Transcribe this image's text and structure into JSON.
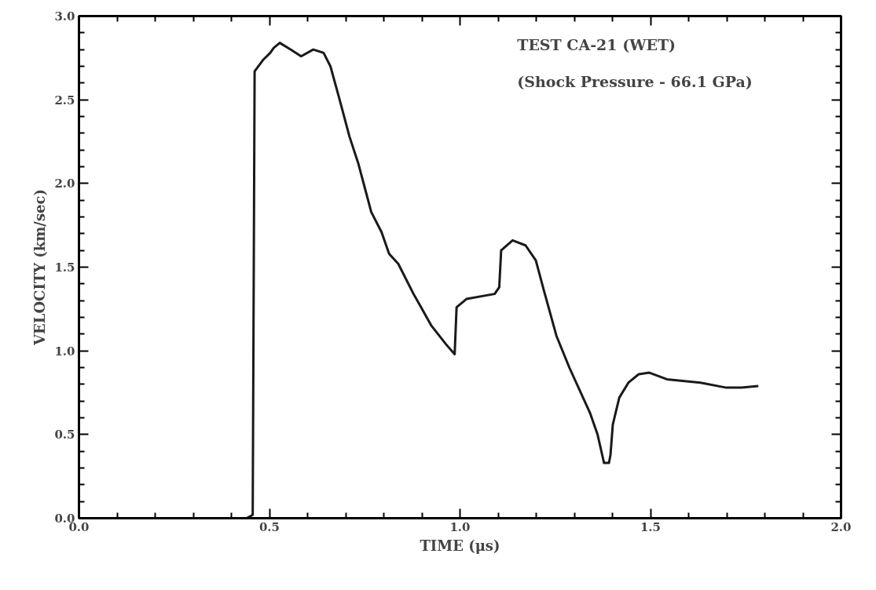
{
  "chart_data": {
    "type": "line",
    "xlabel": "TIME (μs)",
    "ylabel": "VELOCITY (km/sec)",
    "annotations": [
      "TEST CA-21 (WET)",
      "(Shock Pressure - 66.1 GPa)"
    ],
    "xlim": [
      0,
      2
    ],
    "ylim": [
      0,
      3
    ],
    "xticks": [
      {
        "value": 0,
        "label": "0.0"
      },
      0.5,
      {
        "value": 1,
        "label": "1.0"
      },
      1.5,
      {
        "value": 2,
        "label": "2.0"
      }
    ],
    "yticks": [
      {
        "value": 0,
        "label": "0.0"
      },
      0.5,
      {
        "value": 1,
        "label": "1.0"
      },
      1.5,
      {
        "value": 2,
        "label": "2.0"
      },
      2.5,
      {
        "value": 3,
        "label": "3.0"
      }
    ],
    "grid": false,
    "marker": "none",
    "line_style": "solid",
    "series": [
      {
        "color": "#1a1a1a",
        "x": [
          0.44,
          0.456,
          0.461,
          0.484,
          0.502,
          0.511,
          0.527,
          0.556,
          0.583,
          0.615,
          0.642,
          0.66,
          0.683,
          0.71,
          0.733,
          0.753,
          0.767,
          0.794,
          0.814,
          0.838,
          0.878,
          0.898,
          0.925,
          0.963,
          0.986,
          0.991,
          1.017,
          1.091,
          1.103,
          1.108,
          1.138,
          1.172,
          1.199,
          1.219,
          1.253,
          1.287,
          1.341,
          1.361,
          1.378,
          1.391,
          1.395,
          1.401,
          1.418,
          1.442,
          1.469,
          1.496,
          1.543,
          1.631,
          1.699,
          1.739,
          1.783
        ],
        "values": [
          0,
          0.02,
          2.67,
          2.74,
          2.78,
          2.81,
          2.84,
          2.8,
          2.76,
          2.8,
          2.78,
          2.7,
          2.51,
          2.28,
          2.12,
          1.95,
          1.83,
          1.71,
          1.58,
          1.52,
          1.34,
          1.26,
          1.15,
          1.04,
          0.98,
          1.26,
          1.31,
          1.34,
          1.38,
          1.6,
          1.66,
          1.63,
          1.54,
          1.37,
          1.09,
          0.9,
          0.63,
          0.5,
          0.33,
          0.33,
          0.38,
          0.56,
          0.72,
          0.81,
          0.86,
          0.87,
          0.83,
          0.81,
          0.78,
          0.78,
          0.79
        ]
      }
    ]
  }
}
